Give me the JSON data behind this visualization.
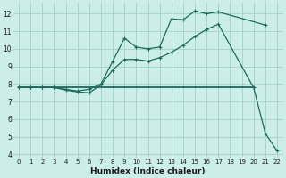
{
  "xlabel": "Humidex (Indice chaleur)",
  "bg_color": "#cceee8",
  "line_color": "#1a6b5a",
  "grid_color": "#aad4cc",
  "ylim": [
    3.8,
    12.6
  ],
  "xlim": [
    -0.5,
    22.5
  ],
  "yticks": [
    4,
    5,
    6,
    7,
    8,
    9,
    10,
    11,
    12
  ],
  "xticks": [
    0,
    1,
    2,
    3,
    4,
    5,
    6,
    7,
    8,
    9,
    10,
    11,
    12,
    13,
    14,
    15,
    16,
    17,
    18,
    19,
    20,
    21,
    22
  ],
  "line1_x": [
    0,
    1,
    2,
    3,
    4,
    5,
    6,
    7,
    8,
    9,
    10,
    11,
    12,
    13,
    14,
    15,
    16,
    17,
    18,
    19,
    20
  ],
  "line1_y": [
    7.8,
    7.8,
    7.8,
    7.8,
    7.8,
    7.8,
    7.8,
    7.8,
    7.8,
    7.8,
    7.8,
    7.8,
    7.8,
    7.8,
    7.8,
    7.8,
    7.8,
    7.8,
    7.8,
    7.8,
    7.8
  ],
  "line2_x": [
    0,
    1,
    2,
    3,
    4,
    5,
    6,
    7,
    8,
    9,
    10,
    11,
    12,
    13,
    14,
    15,
    16,
    17,
    21
  ],
  "line2_y": [
    7.8,
    7.8,
    7.8,
    7.8,
    7.7,
    7.6,
    7.7,
    8.0,
    9.3,
    10.6,
    10.1,
    10.0,
    10.1,
    11.7,
    11.65,
    12.15,
    12.0,
    12.1,
    11.35
  ],
  "line3_x": [
    0,
    1,
    2,
    3,
    4,
    5,
    6,
    7,
    8,
    9,
    10,
    11,
    12,
    13,
    14,
    15,
    16,
    17,
    20,
    21,
    22
  ],
  "line3_y": [
    7.8,
    7.8,
    7.8,
    7.8,
    7.65,
    7.55,
    7.5,
    7.95,
    8.8,
    9.4,
    9.4,
    9.3,
    9.5,
    9.8,
    10.2,
    10.7,
    11.1,
    11.4,
    7.8,
    5.2,
    4.2
  ]
}
